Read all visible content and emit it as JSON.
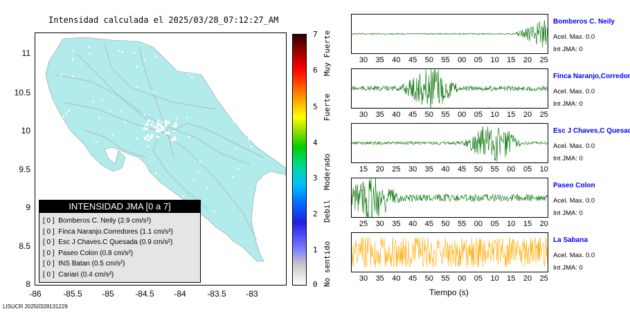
{
  "map": {
    "title": "Intensidad calculada el 2025/03/28_07:12:27_AM",
    "lat_ticks": [
      "11",
      "10.5",
      "10",
      "9.5",
      "9",
      "8.5",
      "8"
    ],
    "lon_ticks": [
      "-86",
      "-85.5",
      "-85",
      "-84.5",
      "-84",
      "-83.5",
      "-83"
    ],
    "land_color": "#b2ebec"
  },
  "legend": {
    "title": "INTENSIDAD JMA [0 a 7]",
    "items": [
      {
        "tag": "[ 0 ]",
        "name": "Bomberos C. Neily",
        "value": "(2.9 cm/s²)"
      },
      {
        "tag": "[ 0 ]",
        "name": "Finca Naranjo.Corredores",
        "value": "(1.1 cm/s²)"
      },
      {
        "tag": "[ 0 ]",
        "name": "Esc J Chaves.C Quesada",
        "value": "(0.9 cm/s²)"
      },
      {
        "tag": "[ 0 ]",
        "name": "Paseo Colon",
        "value": "(0.8 cm/s²)"
      },
      {
        "tag": "[ 0 ]",
        "name": "INS Batan",
        "value": "(0.5 cm/s²)"
      },
      {
        "tag": "[ 0 ]",
        "name": "Cariari",
        "value": "(0.4 cm/s²)"
      }
    ]
  },
  "colorbar": {
    "ticks": [
      "7",
      "6",
      "5",
      "4",
      "3",
      "2",
      "1",
      "0"
    ],
    "labels": [
      "Muy Fuerte",
      "Fuerte",
      "Moderado",
      "Debil",
      "No sentido"
    ]
  },
  "stations": [
    {
      "name": "Bomberos C. Neily",
      "acel": "Acel. Max. 0.0",
      "jma": "Int JMA: 0",
      "color": "#007000",
      "ticks": [
        "30",
        "35",
        "40",
        "45",
        "50",
        "55",
        "00",
        "05",
        "10",
        "15",
        "20",
        "25"
      ],
      "amplitude": 0.02,
      "burst_at": 0.98
    },
    {
      "name": "Finca Naranjo,Corredor",
      "acel": "Acel. Max. 0.0",
      "jma": "Int JMA: 0",
      "color": "#007000",
      "ticks": [
        "30",
        "35",
        "40",
        "45",
        "50",
        "55",
        "00",
        "05",
        "10",
        "15",
        "20",
        "25"
      ],
      "amplitude": 0.08,
      "burst_at": 0.4
    },
    {
      "name": "Esc J Chaves,C Quesad",
      "acel": "Acel. Max. 0.0",
      "jma": "Int JMA: 0",
      "color": "#007000",
      "ticks": [
        "15",
        "20",
        "25",
        "30",
        "35",
        "40",
        "45",
        "50",
        "55",
        "00",
        "05",
        "10"
      ],
      "amplitude": 0.05,
      "burst_at": 0.72
    },
    {
      "name": "Paseo Colon",
      "acel": "Acel. Max. 0.0",
      "jma": "Int JMA: 0",
      "color": "#007000",
      "ticks": [
        "25",
        "30",
        "35",
        "40",
        "45",
        "50",
        "55",
        "00",
        "05",
        "10",
        "15",
        "20"
      ],
      "amplitude": 0.12,
      "burst_at": 0.1
    },
    {
      "name": "La Sabana",
      "acel": "Acel. Max. 0.0",
      "jma": "Int JMA: 0",
      "color": "#ffaa00",
      "ticks": [
        "30",
        "35",
        "40",
        "45",
        "50",
        "55",
        "00",
        "05",
        "10",
        "15",
        "20",
        "25"
      ],
      "amplitude": 0.5,
      "burst_at": -1
    }
  ],
  "xlabel": "Tiempo (s)",
  "footer": "LISUCR 20250328131229"
}
